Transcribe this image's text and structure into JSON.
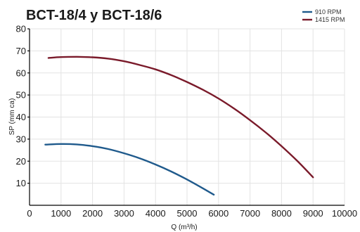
{
  "chart_data": {
    "type": "line",
    "title": "BCT-18/4 y BCT-18/6",
    "xlabel": "Q (m³/h)",
    "ylabel": "SP (mm ca)",
    "xlim": [
      0,
      10000
    ],
    "ylim": [
      0,
      80
    ],
    "x_ticks": [
      0,
      1000,
      2000,
      3000,
      4000,
      5000,
      6000,
      7000,
      8000,
      9000,
      10000
    ],
    "y_ticks": [
      10,
      20,
      30,
      40,
      50,
      60,
      70,
      80
    ],
    "x_tick_labels": [
      "0",
      "1000",
      "2000",
      "3000",
      "4000",
      "5000",
      "6000",
      "7000",
      "8000",
      "9000",
      "10000"
    ],
    "y_tick_labels": [
      "10",
      "20",
      "30",
      "40",
      "50",
      "60",
      "70",
      "80"
    ],
    "grid": true,
    "legend_position": "top-right",
    "series": [
      {
        "name": "910 RPM",
        "color": "#1f5a8c",
        "x": [
          500,
          1000,
          1500,
          2000,
          2500,
          3000,
          3500,
          4000,
          4500,
          5000,
          5500,
          5850
        ],
        "y": [
          27.5,
          27.8,
          27.6,
          26.8,
          25.5,
          23.6,
          21.3,
          18.5,
          15.3,
          11.7,
          7.7,
          4.8
        ]
      },
      {
        "name": "1415 RPM",
        "color": "#7a1a2a",
        "x": [
          600,
          1000,
          1500,
          2000,
          2500,
          3000,
          3500,
          4000,
          4500,
          5000,
          5500,
          6000,
          6500,
          7000,
          7500,
          8000,
          8500,
          9000
        ],
        "y": [
          66.8,
          67.2,
          67.3,
          67.1,
          66.5,
          65.3,
          63.6,
          61.6,
          59.0,
          55.9,
          52.4,
          48.4,
          43.8,
          38.6,
          33.0,
          26.8,
          20.1,
          12.7
        ]
      }
    ]
  }
}
